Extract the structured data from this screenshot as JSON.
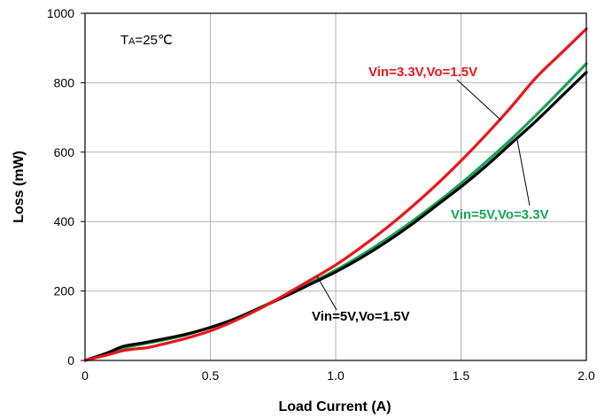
{
  "chart_data": {
    "type": "line",
    "xlabel": "Load Current (A)",
    "ylabel": "Loss (mW)",
    "xlim": [
      0,
      2.0
    ],
    "ylim": [
      0,
      1000
    ],
    "xticks": [
      "0",
      "0.5",
      "1.0",
      "1.5",
      "2.0"
    ],
    "yticks": [
      "0",
      "200",
      "400",
      "600",
      "800",
      "1000"
    ],
    "grid": true,
    "annotation": {
      "prefix": "T",
      "subscript": "A",
      "suffix": "=25℃"
    },
    "series": [
      {
        "name": "Vin=5V,Vo=1.5V",
        "color": "#000000",
        "x": [
          0,
          0.05,
          0.1,
          0.15,
          0.2,
          0.25,
          0.3,
          0.4,
          0.5,
          0.6,
          0.7,
          0.8,
          0.9,
          1.0,
          1.1,
          1.2,
          1.3,
          1.4,
          1.5,
          1.6,
          1.7,
          1.8,
          1.9,
          2.0
        ],
        "y": [
          0,
          12,
          25,
          40,
          47,
          53,
          60,
          75,
          95,
          120,
          152,
          185,
          220,
          255,
          295,
          340,
          390,
          445,
          500,
          560,
          625,
          690,
          760,
          830
        ]
      },
      {
        "name": "Vin=5V,Vo=3.3V",
        "color": "#17a356",
        "x": [
          0,
          0.05,
          0.1,
          0.15,
          0.2,
          0.25,
          0.3,
          0.4,
          0.5,
          0.6,
          0.7,
          0.8,
          0.9,
          1.0,
          1.1,
          1.2,
          1.3,
          1.4,
          1.5,
          1.6,
          1.7,
          1.8,
          1.9,
          2.0
        ],
        "y": [
          0,
          11,
          22,
          35,
          43,
          50,
          57,
          73,
          95,
          121,
          153,
          187,
          223,
          260,
          302,
          348,
          398,
          452,
          510,
          572,
          637,
          707,
          780,
          855
        ]
      },
      {
        "name": "Vin=3.3V,Vo=1.5V",
        "color": "#e8161b",
        "x": [
          0,
          0.05,
          0.1,
          0.15,
          0.2,
          0.25,
          0.3,
          0.4,
          0.5,
          0.6,
          0.7,
          0.8,
          0.9,
          1.0,
          1.1,
          1.2,
          1.3,
          1.4,
          1.5,
          1.6,
          1.7,
          1.8,
          1.9,
          2.0
        ],
        "y": [
          0,
          9,
          18,
          28,
          33,
          37,
          45,
          63,
          85,
          115,
          150,
          190,
          232,
          275,
          325,
          380,
          440,
          505,
          575,
          650,
          730,
          815,
          885,
          955
        ]
      }
    ]
  }
}
